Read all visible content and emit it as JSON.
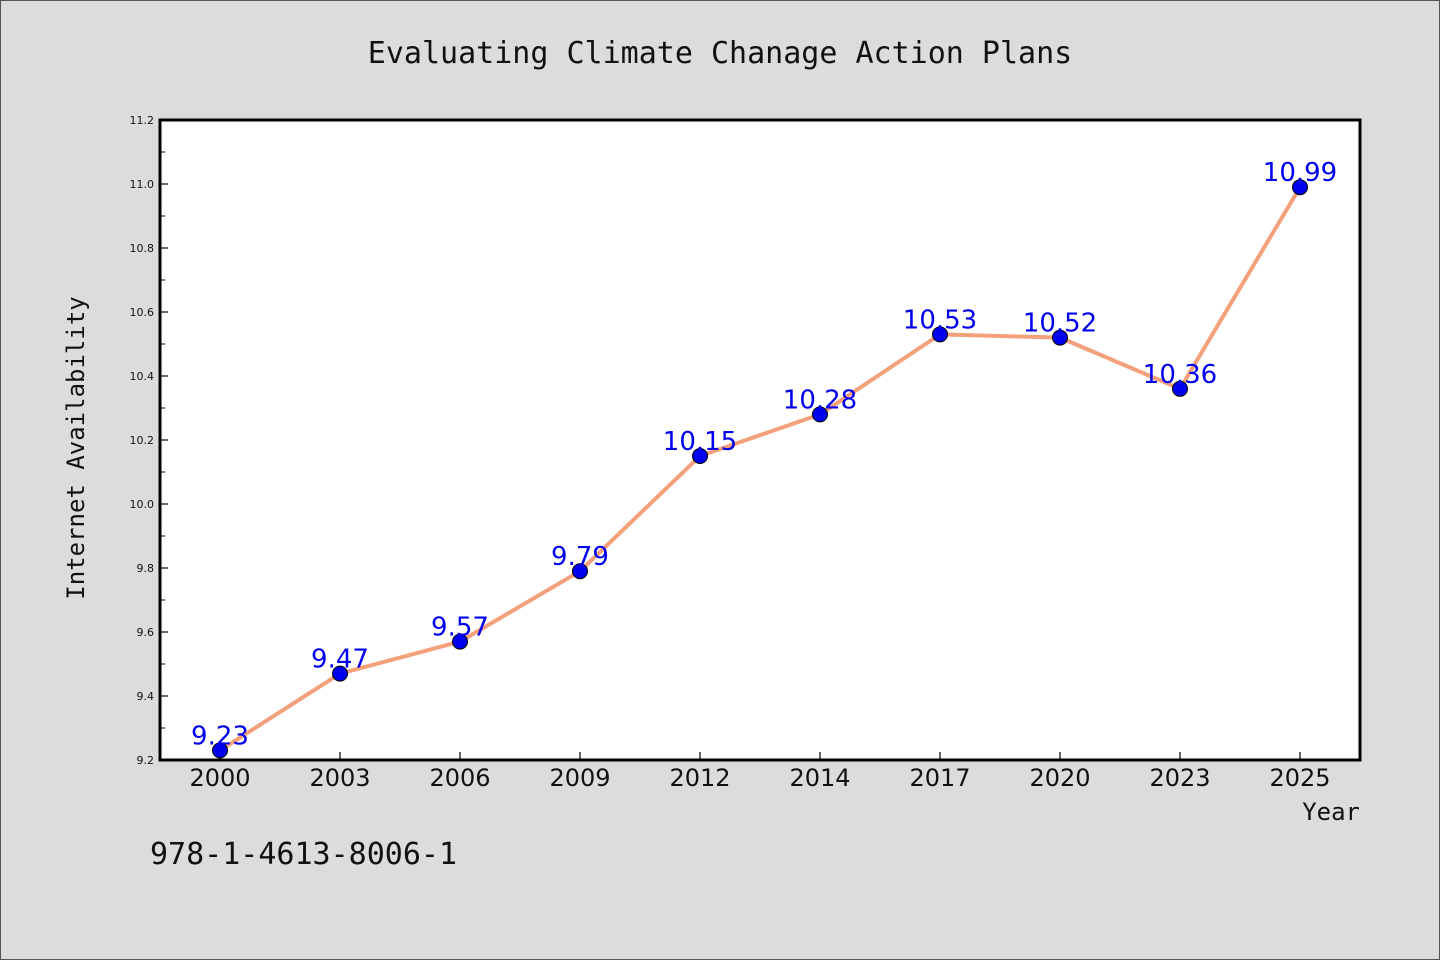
{
  "chart_data": {
    "type": "line",
    "title": "Evaluating Climate Chanage Action Plans",
    "xlabel": "Year",
    "ylabel": "Internet Availability",
    "categories": [
      "2000",
      "2003",
      "2006",
      "2009",
      "2012",
      "2014",
      "2017",
      "2020",
      "2023",
      "2025"
    ],
    "series": [
      {
        "values": [
          9.23,
          9.47,
          9.57,
          9.79,
          10.15,
          10.28,
          10.53,
          10.52,
          10.36,
          10.99
        ],
        "line_color": "#f4a07a",
        "marker_color": "#0000ee"
      }
    ],
    "ylim": [
      9.2,
      11.2
    ],
    "y_ticks": [
      "9.2",
      "9.4",
      "9.6",
      "9.8",
      "10.0",
      "10.2",
      "10.4",
      "10.6",
      "10.8",
      "11.0",
      "11.2"
    ],
    "grid": false,
    "data_labels": [
      "9.23",
      "9.47",
      "9.57",
      "9.79",
      "10.15",
      "10.28",
      "10.53",
      "10.52",
      "10.36",
      "10.99"
    ]
  },
  "footer": {
    "isbn": "978-1-4613-8006-1"
  },
  "colors": {
    "background": "#dcdcdc",
    "plot_background": "#ffffff",
    "line": "#f4a07a",
    "marker": "#0000ee",
    "data_label": "#0000ee"
  }
}
